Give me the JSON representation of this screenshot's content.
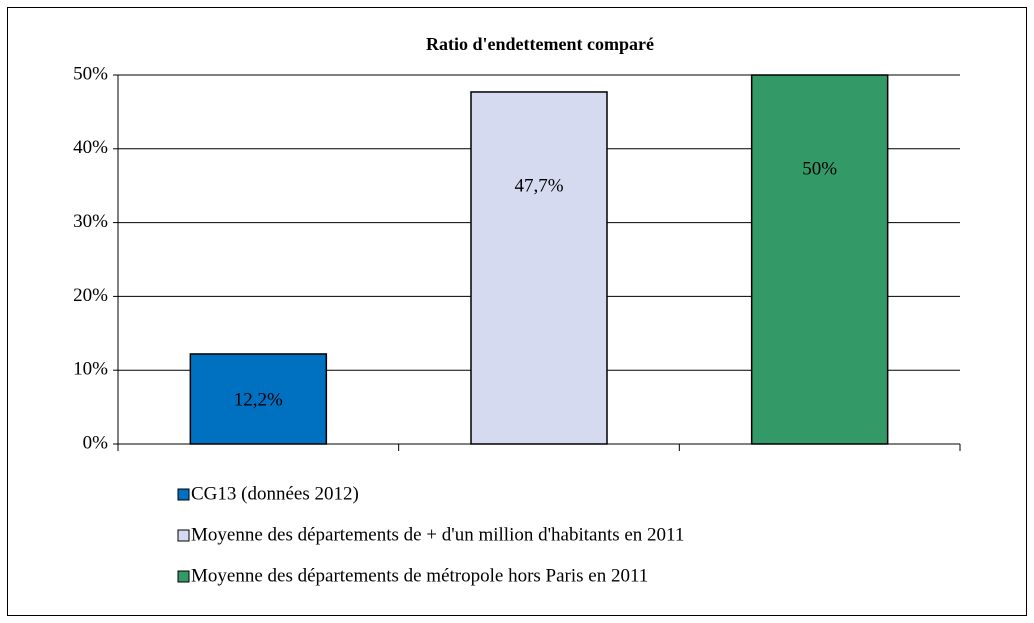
{
  "chart_data": {
    "type": "bar",
    "title": "Ratio d'endettement comparé",
    "series": [
      {
        "name": "CG13 (données 2012)",
        "color": "#0070c0",
        "values": [
          12.2
        ],
        "value_labels": [
          "12,2%"
        ]
      },
      {
        "name": "Moyenne des départements de + d'un million d'habitants en 2011",
        "color": "#d6daf0",
        "values": [
          47.7
        ],
        "value_labels": [
          "47,7%"
        ]
      },
      {
        "name": "Moyenne des départements de métropole hors Paris en 2011",
        "color": "#339966",
        "values": [
          50
        ],
        "value_labels": [
          "50%"
        ]
      }
    ],
    "ylim": [
      0,
      50
    ],
    "yticks": [
      {
        "value": 0,
        "label": "0%"
      },
      {
        "value": 10,
        "label": "10%"
      },
      {
        "value": 20,
        "label": "20%"
      },
      {
        "value": 30,
        "label": "30%"
      },
      {
        "value": 40,
        "label": "40%"
      },
      {
        "value": 50,
        "label": "50%"
      }
    ],
    "grid": true,
    "legend": "bottom"
  }
}
